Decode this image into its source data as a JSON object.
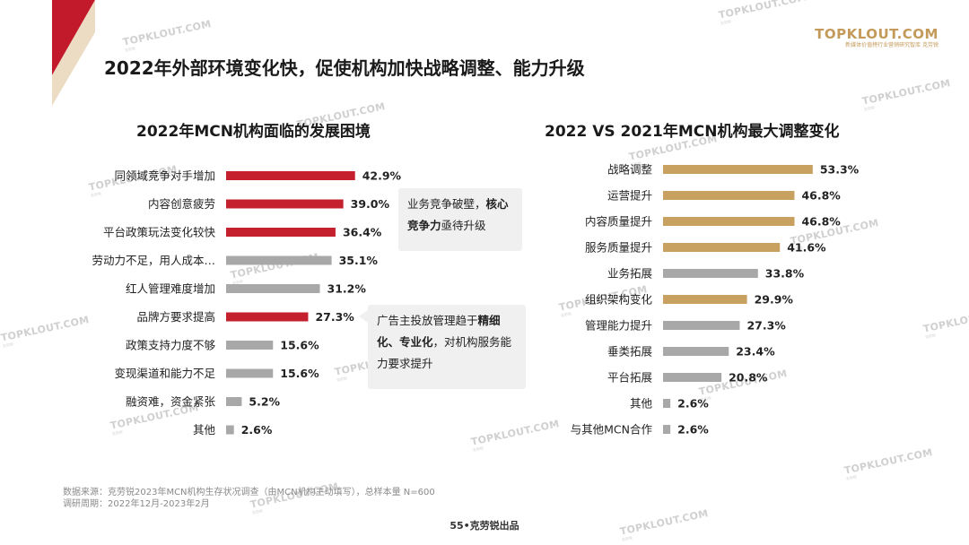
{
  "page": {
    "title": "2022年外部环境变化快，促使机构加快战略调整、能力升级",
    "brand": {
      "name": "TOPKLOUT.COM",
      "tagline": "新媒体价值榜行业营销研究智库 克劳锐"
    },
    "watermark": {
      "name": "TOPKLOUT.COM",
      "sub": "克劳锐"
    },
    "footnote_lines": [
      "数据来源：克劳锐2023年MCN机构生存状况调查（由MCN机构主动填写），总样本量 N=600",
      "调研周期：2022年12月-2023年2月"
    ],
    "footer": "55•克劳锐出品",
    "colors": {
      "red": "#c4202e",
      "gold": "#c8a060",
      "gray": "#a8a8a8",
      "deco_red": "#c21a2a",
      "deco_beige": "#ecdcc4"
    }
  },
  "callouts": {
    "left_top": {
      "before": "业务竞争破壁，",
      "bold": "核心竞争力",
      "after": "亟待升级"
    },
    "left_bottom": {
      "before": "广告主投放管理趋于",
      "bold": "精细化、专业化",
      "after": "，对机构服务能力要求提升"
    }
  },
  "chart_data": [
    {
      "type": "bar",
      "orientation": "horizontal",
      "title": "2022年MCN机构面临的发展困境",
      "categories": [
        "同领域竞争对手增加",
        "内容创意疲劳",
        "平台政策玩法变化较快",
        "劳动力不足，用人成本…",
        "红人管理难度增加",
        "品牌方要求提高",
        "政策支持力度不够",
        "变现渠道和能力不足",
        "融资难，资金紧张",
        "其他"
      ],
      "values": [
        42.9,
        39.0,
        36.4,
        35.1,
        31.2,
        27.3,
        15.6,
        15.6,
        5.2,
        2.6
      ],
      "value_labels": [
        "42.9%",
        "39.0%",
        "36.4%",
        "35.1%",
        "31.2%",
        "27.3%",
        "15.6%",
        "15.6%",
        "5.2%",
        "2.6%"
      ],
      "highlight": [
        true,
        true,
        true,
        false,
        false,
        true,
        false,
        false,
        false,
        false
      ],
      "unit": "%",
      "xlim": [
        0,
        50
      ],
      "grid": false,
      "legend": "none"
    },
    {
      "type": "bar",
      "orientation": "horizontal",
      "title": "2022 VS 2021年MCN机构最大调整变化",
      "categories": [
        "战略调整",
        "运营提升",
        "内容质量提升",
        "服务质量提升",
        "业务拓展",
        "组织架构变化",
        "管理能力提升",
        "垂类拓展",
        "平台拓展",
        "其他",
        "与其他MCN合作"
      ],
      "values": [
        53.3,
        46.8,
        46.8,
        41.6,
        33.8,
        29.9,
        27.3,
        23.4,
        20.8,
        2.6,
        2.6
      ],
      "value_labels": [
        "53.3%",
        "46.8%",
        "46.8%",
        "41.6%",
        "33.8%",
        "29.9%",
        "27.3%",
        "23.4%",
        "20.8%",
        "2.6%",
        "2.6%"
      ],
      "highlight": [
        true,
        true,
        true,
        true,
        false,
        true,
        false,
        false,
        false,
        false,
        false
      ],
      "unit": "%",
      "xlim": [
        0,
        60
      ],
      "grid": false,
      "legend": "none"
    }
  ]
}
